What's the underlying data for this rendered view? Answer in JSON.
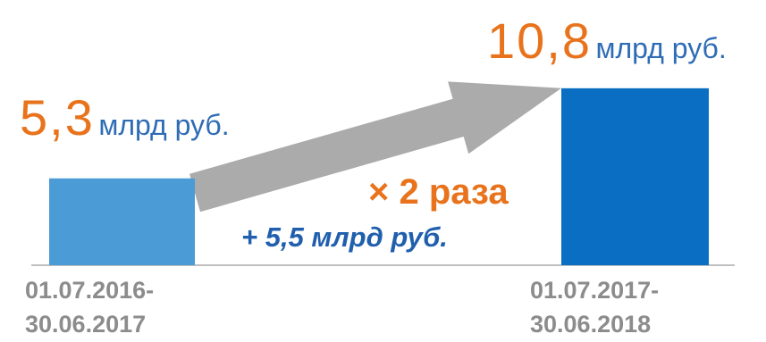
{
  "chart_data": {
    "type": "bar",
    "categories": [
      [
        "01.07.2016-",
        "30.06.2017"
      ],
      [
        "01.07.2017-",
        "30.06.2018"
      ]
    ],
    "values": [
      5.3,
      10.8
    ],
    "value_labels": [
      {
        "number": "5,3",
        "unit": "млрд руб."
      },
      {
        "number": "10,8",
        "unit": "млрд руб."
      }
    ],
    "bar_colors": [
      "#4A9BD6",
      "#0A6EC2"
    ],
    "ylim": [
      0,
      11.5
    ],
    "grid": false,
    "annotations": {
      "multiplier": "× 2 раза",
      "difference": "+ 5,5 млрд руб."
    },
    "arrow_color": "#ABABAB"
  }
}
